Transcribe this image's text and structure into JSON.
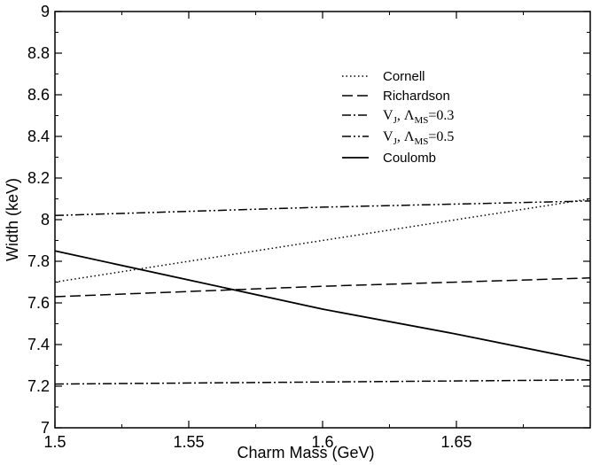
{
  "chart_data": {
    "type": "line",
    "xlabel": "Charm Mass (GeV)",
    "ylabel": "Width (keV)",
    "xlim": [
      1.5,
      1.7
    ],
    "ylim": [
      7,
      9
    ],
    "x_ticks": [
      "1.5",
      "1.55",
      "1.6",
      "1.65"
    ],
    "x_tick_values": [
      1.5,
      1.55,
      1.6,
      1.65
    ],
    "y_ticks": [
      "7",
      "7.2",
      "7.4",
      "7.6",
      "7.8",
      "8",
      "8.2",
      "8.4",
      "8.6",
      "8.8",
      "9"
    ],
    "y_tick_values": [
      7,
      7.2,
      7.4,
      7.6,
      7.8,
      8,
      8.2,
      8.4,
      8.6,
      8.8,
      9
    ],
    "legend_position": "upper-right",
    "series": [
      {
        "name": "Cornell",
        "dash": "dotted",
        "x": [
          1.5,
          1.6,
          1.7
        ],
        "y": [
          7.7,
          7.9,
          8.1
        ]
      },
      {
        "name": "Richardson",
        "dash": "dashed",
        "x": [
          1.5,
          1.6,
          1.7
        ],
        "y": [
          7.63,
          7.68,
          7.72
        ]
      },
      {
        "name": "V_J, Λ_MS=0.3",
        "dash": "dash-dot",
        "x": [
          1.5,
          1.6,
          1.7
        ],
        "y": [
          7.21,
          7.22,
          7.23
        ]
      },
      {
        "name": "V_J, Λ_MS=0.5",
        "dash": "dash-dot-dot",
        "x": [
          1.5,
          1.6,
          1.7
        ],
        "y": [
          8.02,
          8.06,
          8.09
        ]
      },
      {
        "name": "Coulomb",
        "dash": "solid",
        "x": [
          1.5,
          1.55,
          1.6,
          1.65,
          1.7
        ],
        "y": [
          7.85,
          7.71,
          7.57,
          7.45,
          7.32
        ]
      }
    ],
    "legend": {
      "cornell": "Cornell",
      "richardson": "Richardson",
      "vj03": {
        "v": "V",
        "sub_j": "J",
        "sep": ", ",
        "lambda": "Λ",
        "sub_ms": "MS",
        "val": "=0.3"
      },
      "vj05": {
        "v": "V",
        "sub_j": "J",
        "sep": ", ",
        "lambda": "Λ",
        "sub_ms": "MS",
        "val": "=0.5"
      },
      "coulomb": "Coulomb"
    }
  }
}
